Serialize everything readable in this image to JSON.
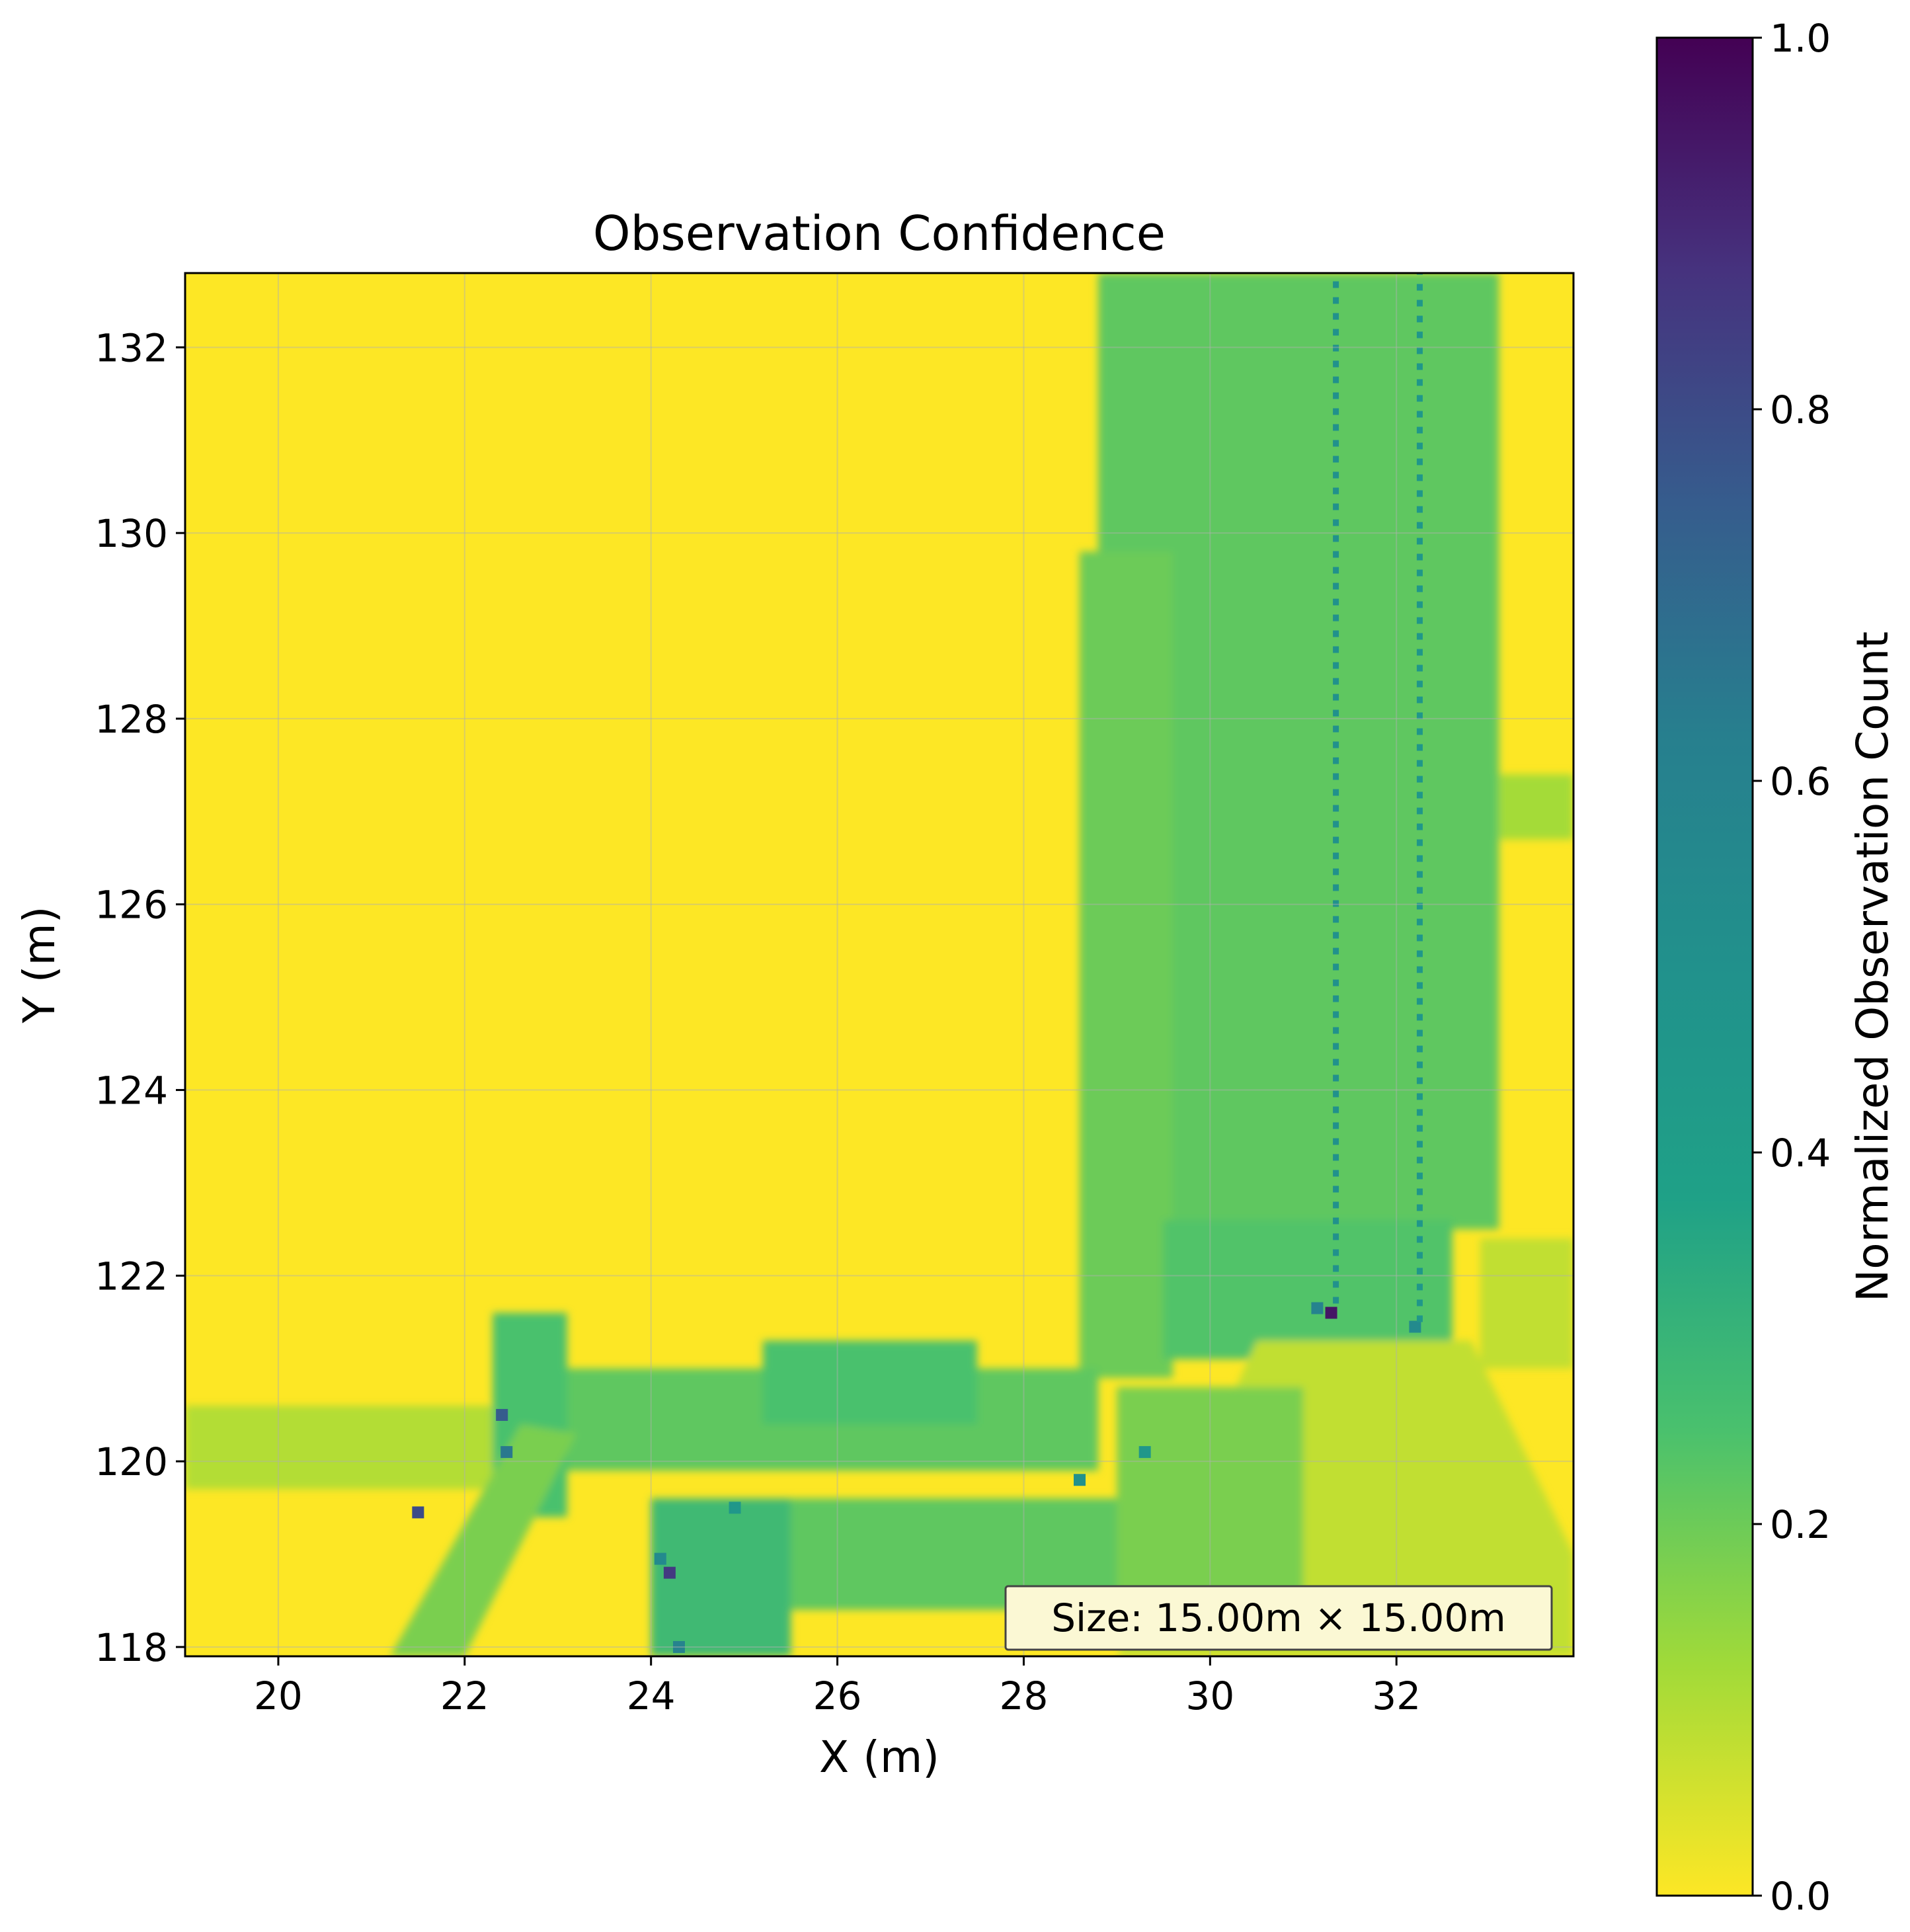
{
  "chart_data": {
    "type": "heatmap",
    "title": "Observation Confidence",
    "xlabel": "X (m)",
    "ylabel": "Y (m)",
    "xlim": [
      19.0,
      33.9
    ],
    "ylim": [
      117.9,
      132.8
    ],
    "x_ticks": [
      20,
      22,
      24,
      26,
      28,
      30,
      32
    ],
    "y_ticks": [
      118,
      120,
      122,
      124,
      126,
      128,
      130,
      132
    ],
    "grid": true,
    "colormap": "viridis_r",
    "colorbar": {
      "label": "Normalized Observation Count",
      "range": [
        0.0,
        1.0
      ],
      "ticks": [
        0.0,
        0.2,
        0.4,
        0.6,
        0.8,
        1.0
      ],
      "tick_labels": [
        "0.0",
        "0.2",
        "0.4",
        "0.6",
        "0.8",
        "1.0"
      ]
    },
    "annotation": "Size: 15.00m × 15.00m",
    "regions": [
      {
        "shape": "rect",
        "x": [
          28.8,
          33.1
        ],
        "y": [
          122.5,
          132.8
        ],
        "value": 0.22
      },
      {
        "shape": "rect",
        "x": [
          28.6,
          29.6
        ],
        "y": [
          120.9,
          129.8
        ],
        "value": 0.2
      },
      {
        "shape": "rect",
        "x": [
          33.1,
          33.9
        ],
        "y": [
          126.7,
          127.4
        ],
        "value": 0.12
      },
      {
        "shape": "rect",
        "x": [
          32.9,
          33.9
        ],
        "y": [
          121.0,
          122.4
        ],
        "value": 0.08
      },
      {
        "shape": "rect",
        "x": [
          29.5,
          32.6
        ],
        "y": [
          121.1,
          122.6
        ],
        "value": 0.24
      },
      {
        "shape": "poly",
        "points": [
          [
            30.5,
            121.3
          ],
          [
            32.8,
            121.3
          ],
          [
            33.9,
            119.0
          ],
          [
            33.9,
            117.9
          ],
          [
            29.0,
            117.9
          ]
        ],
        "value": 0.08
      },
      {
        "shape": "rect",
        "x": [
          23.0,
          28.8
        ],
        "y": [
          119.9,
          121.0
        ],
        "value": 0.22
      },
      {
        "shape": "rect",
        "x": [
          25.2,
          27.5
        ],
        "y": [
          120.4,
          121.3
        ],
        "value": 0.25
      },
      {
        "shape": "rect",
        "x": [
          22.3,
          23.1
        ],
        "y": [
          119.4,
          121.6
        ],
        "value": 0.25
      },
      {
        "shape": "rect",
        "x": [
          19.0,
          22.3
        ],
        "y": [
          119.7,
          120.6
        ],
        "value": 0.1
      },
      {
        "shape": "poly",
        "points": [
          [
            21.2,
            117.9
          ],
          [
            22.6,
            120.4
          ],
          [
            23.2,
            120.3
          ],
          [
            22.0,
            117.9
          ]
        ],
        "value": 0.18
      },
      {
        "shape": "rect",
        "x": [
          24.0,
          25.5
        ],
        "y": [
          117.9,
          119.6
        ],
        "value": 0.28
      },
      {
        "shape": "rect",
        "x": [
          25.5,
          29.8
        ],
        "y": [
          118.4,
          119.6
        ],
        "value": 0.22
      },
      {
        "shape": "rect",
        "x": [
          29.0,
          31.0
        ],
        "y": [
          118.2,
          120.8
        ],
        "value": 0.18
      }
    ],
    "peaks": [
      {
        "x": 31.3,
        "y": 121.6,
        "value": 0.95
      },
      {
        "x": 31.15,
        "y": 121.65,
        "value": 0.6
      },
      {
        "x": 24.2,
        "y": 118.8,
        "value": 0.85
      },
      {
        "x": 24.1,
        "y": 118.95,
        "value": 0.55
      },
      {
        "x": 22.4,
        "y": 120.5,
        "value": 0.75
      },
      {
        "x": 22.45,
        "y": 120.1,
        "value": 0.65
      },
      {
        "x": 21.5,
        "y": 119.45,
        "value": 0.8
      },
      {
        "x": 32.2,
        "y": 121.45,
        "value": 0.55
      },
      {
        "x": 28.6,
        "y": 119.8,
        "value": 0.5
      },
      {
        "x": 29.3,
        "y": 120.1,
        "value": 0.45
      },
      {
        "x": 24.9,
        "y": 119.5,
        "value": 0.45
      },
      {
        "x": 24.3,
        "y": 118.0,
        "value": 0.6
      }
    ],
    "track_lines": [
      {
        "x": 31.35,
        "y": [
          121.7,
          132.8
        ],
        "value": 0.5
      },
      {
        "x": 32.25,
        "y": [
          121.5,
          132.8
        ],
        "value": 0.45
      }
    ]
  }
}
